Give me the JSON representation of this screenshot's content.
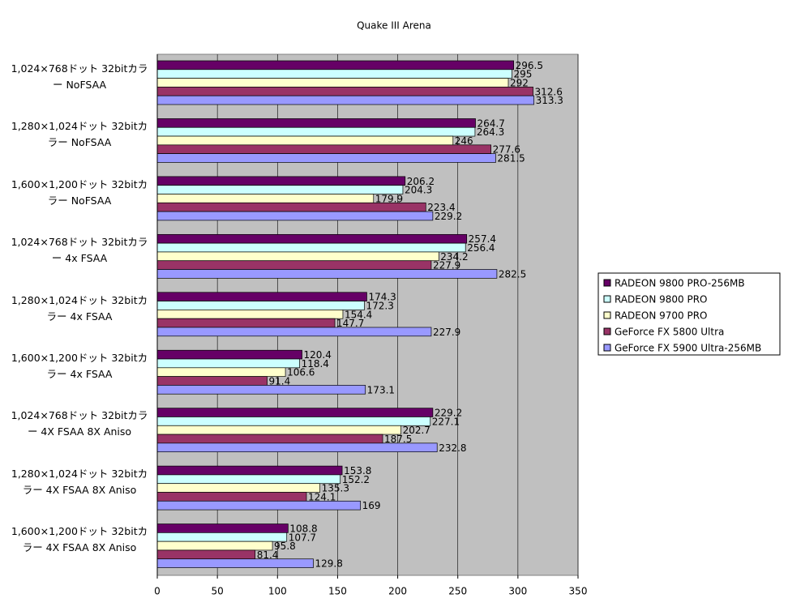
{
  "chart_data": {
    "type": "bar",
    "orientation": "horizontal",
    "title": "Quake III Arena",
    "categories": [
      "1,024×768ドット 32bitカラー NoFSAA",
      "1,280×1,024ドット 32bitカラー NoFSAA",
      "1,600×1,200ドット 32bitカラー NoFSAA",
      "1,024×768ドット 32bitカラー 4x FSAA",
      "1,280×1,024ドット 32bitカラー 4x FSAA",
      "1,600×1,200ドット 32bitカラー 4x FSAA",
      "1,024×768ドット 32bitカラー 4X FSAA 8X Aniso",
      "1,280×1,024ドット 32bitカラー 4X FSAA 8X Aniso",
      "1,600×1,200ドット 32bitカラー 4X FSAA 8X Aniso"
    ],
    "series": [
      {
        "name": "RADEON 9800 PRO-256MB",
        "color": "#660066",
        "values": [
          296.5,
          264.7,
          206.2,
          257.4,
          174.3,
          120.4,
          229.2,
          153.8,
          108.8
        ]
      },
      {
        "name": "RADEON 9800 PRO",
        "color": "#ccffff",
        "values": [
          295,
          264.3,
          204.3,
          256.4,
          172.3,
          118.4,
          227.1,
          152.2,
          107.7
        ]
      },
      {
        "name": "RADEON 9700 PRO",
        "color": "#ffffcc",
        "values": [
          292,
          246,
          179.9,
          234.2,
          154.4,
          106.6,
          202.7,
          135.3,
          95.8
        ]
      },
      {
        "name": "GeForce FX 5800 Ultra",
        "color": "#993366",
        "values": [
          312.6,
          277.6,
          223.4,
          227.9,
          147.7,
          91.4,
          187.5,
          124.1,
          81.4
        ]
      },
      {
        "name": "GeForce FX 5900 Ultra-256MB",
        "color": "#9999ff",
        "values": [
          313.3,
          281.5,
          229.2,
          282.5,
          227.9,
          173.1,
          232.8,
          169,
          129.8
        ]
      }
    ],
    "xlim": [
      0,
      350
    ],
    "xticks": [
      0,
      50,
      100,
      150,
      200,
      250,
      300,
      350
    ],
    "grid": true,
    "legend": "right"
  }
}
